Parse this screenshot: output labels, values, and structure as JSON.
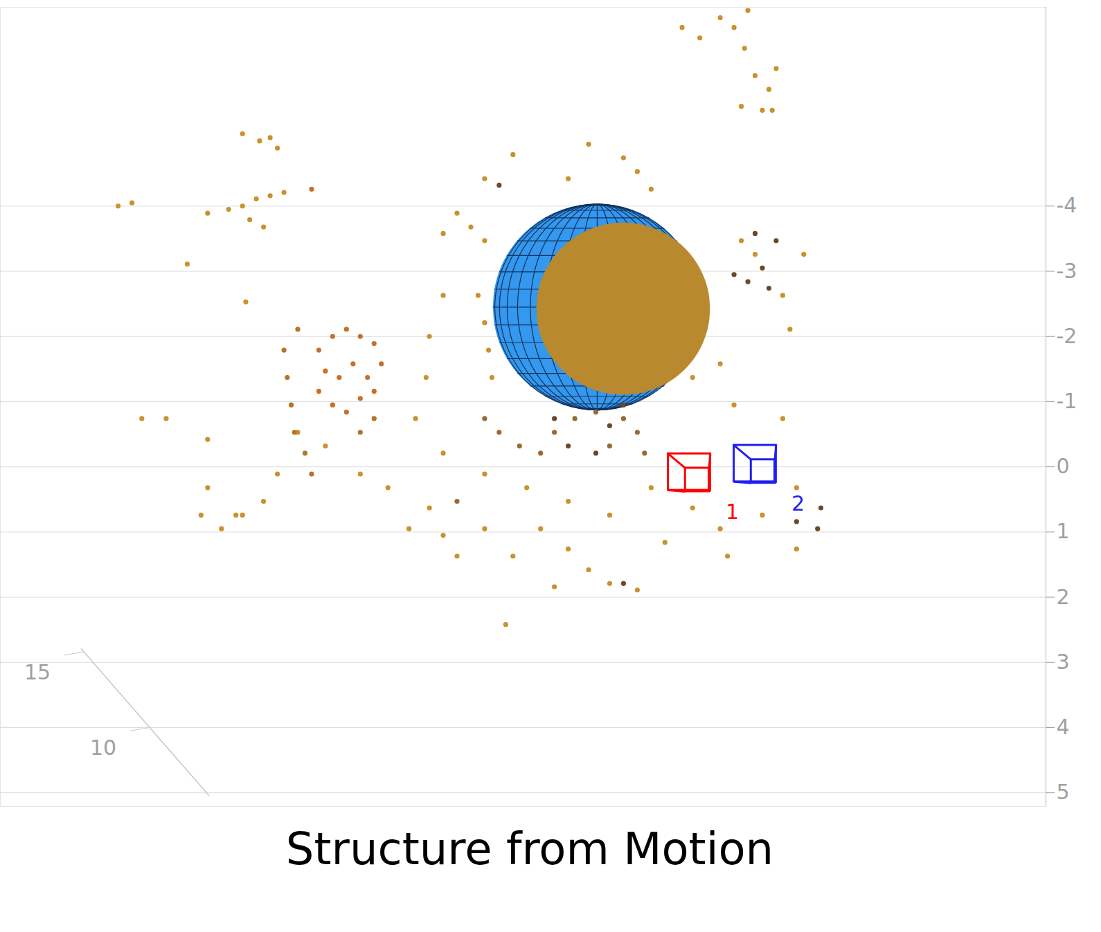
{
  "chart_data": {
    "type": "scatter",
    "title": "Structure from Motion",
    "xlim": [
      -10.47,
      5.42
    ],
    "ylim": [
      -7.05,
      5.21
    ],
    "yticks": [
      -4,
      -3,
      -2,
      -1,
      0,
      1,
      2,
      3,
      4,
      5
    ],
    "zlim": [
      5.5,
      15.2
    ],
    "zticks": [
      10,
      15
    ],
    "grid": true,
    "sphere": {
      "center": [
        -1.4,
        -2.45
      ],
      "radius": 1.58,
      "color": "#3398ee",
      "mesh_color": "#14305a"
    },
    "sphere_cover": {
      "center": [
        -1.0,
        -2.42
      ],
      "radius": 1.32,
      "color": "#b8892f"
    },
    "cameras": [
      {
        "label": "1",
        "x": 0,
        "y": 0.08,
        "color": "#ff0000"
      },
      {
        "label": "2",
        "x": 1.0,
        "y": -0.05,
        "color": "#2020ee"
      }
    ],
    "points": [
      {
        "color": "#c8922e",
        "x": [
          -0.11,
          0.16,
          0.47,
          0.68,
          0.89,
          0.84,
          1.0,
          1.21,
          1.32,
          1.11,
          0.79,
          1.26,
          -6.79,
          -6.53,
          -6.26,
          -6.37,
          -8.68,
          -8.47,
          -7.63,
          -6.74,
          -7.32,
          -7.0,
          -6.79,
          -6.58,
          -6.37,
          -6.16,
          -6.68,
          -6.47,
          -3.74,
          -3.53,
          -3.32,
          -3.11,
          -3.21,
          -3.11,
          -3.05,
          -3.0,
          -3.74,
          -3.95,
          -4.0,
          -3.11,
          -2.68,
          -1.84,
          -1.53,
          -1.0,
          -0.79,
          -0.58,
          0.79,
          1.0,
          1.42,
          1.74,
          1.53,
          -4.16,
          -3.74,
          -3.11,
          -2.47,
          -1.84,
          -1.21,
          -0.58,
          0.05,
          0.47,
          1.11,
          1.63,
          1.42,
          0.68,
          0.05,
          0.47,
          -3.95,
          -3.74,
          -3.53,
          -3.11,
          -2.68,
          -2.26,
          -1.84,
          -1.53,
          -1.21,
          -0.79,
          -2.79,
          -2.05,
          -0.37,
          0.58,
          1.63,
          -4.26,
          -4.58,
          -5.0,
          -5.53,
          -5.95,
          -6.26,
          -6.47,
          -6.89,
          -7.32,
          -7.42,
          -7.11,
          -6.79,
          -8.32,
          -7.95,
          -7.32
        ],
        "y": [
          -6.74,
          -6.58,
          -6.89,
          -6.74,
          -7.0,
          -6.42,
          -6.0,
          -5.79,
          -6.11,
          -5.47,
          -5.53,
          -5.47,
          -5.11,
          -5.0,
          -4.89,
          -5.05,
          -4.0,
          -4.05,
          -3.11,
          -2.53,
          -3.89,
          -3.95,
          -4.0,
          -4.11,
          -4.16,
          -4.21,
          -3.79,
          -3.68,
          -3.58,
          -3.89,
          -3.68,
          -3.47,
          -2.63,
          -2.21,
          -1.79,
          -1.37,
          -2.63,
          -2.0,
          -1.37,
          -4.42,
          -4.79,
          -4.42,
          -4.95,
          -4.74,
          -4.53,
          -4.26,
          -3.47,
          -3.26,
          -2.63,
          -3.26,
          -2.11,
          -0.74,
          -0.21,
          0.11,
          0.32,
          0.53,
          0.74,
          0.32,
          0.63,
          0.95,
          0.74,
          0.32,
          -0.74,
          -0.95,
          -1.37,
          -1.58,
          0.63,
          1.05,
          1.37,
          0.95,
          1.37,
          0.95,
          1.26,
          1.58,
          1.79,
          1.89,
          2.42,
          1.84,
          1.16,
          1.37,
          1.26,
          0.95,
          0.32,
          0.11,
          -0.32,
          -0.53,
          0.11,
          0.53,
          0.74,
          0.32,
          0.74,
          0.95,
          0.74,
          -0.74,
          -0.74,
          -0.42
        ]
      },
      {
        "color": "#c8702a",
        "x": [
          -5.63,
          -5.42,
          -5.21,
          -5.0,
          -4.79,
          -5.53,
          -5.32,
          -5.11,
          -4.89,
          -4.68,
          -5.63,
          -5.42,
          -5.21,
          -5.0,
          -4.79,
          -5.74
        ],
        "y": [
          -1.79,
          -2.0,
          -2.11,
          -2.0,
          -1.89,
          -1.47,
          -1.37,
          -1.58,
          -1.37,
          -1.58,
          -1.16,
          -0.95,
          -0.84,
          -1.05,
          -1.16,
          -4.26
        ]
      },
      {
        "color": "#b4742a",
        "x": [
          -6.16,
          -6.11,
          -6.05,
          -6.0,
          -5.95,
          -5.84,
          -5.74,
          -5.0,
          -4.79
        ],
        "y": [
          -1.79,
          -1.37,
          -0.95,
          -0.53,
          -2.11,
          -0.21,
          0.11,
          -0.53,
          -0.74
        ]
      },
      {
        "color": "#6a4a25",
        "x": [
          0.68,
          0.89,
          1.11,
          1.21,
          1.0,
          1.32,
          1.63,
          1.95,
          2.0,
          -1.0,
          -2.89,
          -2.05,
          -1.84,
          -1.21,
          -1.0,
          -1.42
        ],
        "y": [
          -2.95,
          -2.84,
          -3.05,
          -2.74,
          -3.58,
          -3.47,
          0.84,
          0.95,
          0.63,
          1.79,
          -4.32,
          -0.74,
          -0.32,
          -0.63,
          -0.95,
          -0.21
        ]
      },
      {
        "color": "#9a6a35",
        "x": [
          -2.05,
          -1.74,
          -1.42,
          -1.0,
          -0.79,
          -2.26,
          -2.58,
          -2.89,
          -3.11,
          -1.21,
          -0.68,
          -3.53
        ],
        "y": [
          -0.53,
          -0.74,
          -0.84,
          -0.74,
          -0.53,
          -0.21,
          -0.32,
          -0.53,
          -0.74,
          -0.32,
          -0.21,
          0.53
        ]
      }
    ]
  }
}
